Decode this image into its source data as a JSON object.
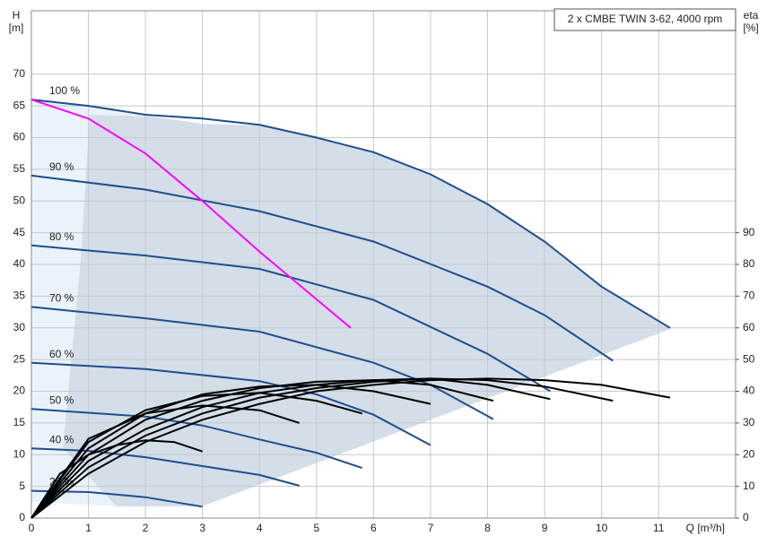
{
  "chart_data": {
    "type": "line",
    "title": "2 x CMBE TWIN 3-62, 4000 rpm",
    "y_label": "H",
    "y_unit": "[m]",
    "y2_label": "eta",
    "y2_unit": "[%]",
    "x_label": "Q [m³/h]",
    "xlim": [
      0,
      12.35
    ],
    "xticks": [
      0,
      1,
      2,
      3,
      4,
      5,
      6,
      7,
      8,
      9,
      10,
      11
    ],
    "ylim": [
      0,
      80
    ],
    "yticks": [
      0,
      5,
      10,
      15,
      20,
      25,
      30,
      35,
      40,
      45,
      50,
      55,
      60,
      65,
      70
    ],
    "y2lim": [
      0,
      160
    ],
    "y2ticks": [
      0,
      10,
      20,
      30,
      40,
      50,
      60,
      70,
      80,
      90
    ],
    "grid": true,
    "series": [
      {
        "name": "100 %",
        "color": "#1f4e8c",
        "x": [
          0,
          1,
          2,
          3,
          4,
          5,
          6,
          7,
          8,
          9,
          10,
          11.2
        ],
        "values": [
          66,
          65,
          63.6,
          63,
          62,
          60,
          57.7,
          54.2,
          49.5,
          43.6,
          36.5,
          30
        ]
      },
      {
        "name": "90 %",
        "color": "#1f4e8c",
        "x": [
          0,
          2,
          4,
          6,
          8,
          9,
          10.2
        ],
        "values": [
          54,
          51.8,
          48.4,
          43.6,
          36.5,
          32,
          24.8
        ]
      },
      {
        "name": "80 %",
        "color": "#1f4e8c",
        "x": [
          0,
          2,
          4,
          6,
          8,
          9.1
        ],
        "values": [
          43,
          41.4,
          39.3,
          34.4,
          25.9,
          20
        ]
      },
      {
        "name": "70 %",
        "color": "#1f4e8c",
        "x": [
          0,
          2,
          4,
          6,
          7,
          8.1
        ],
        "values": [
          33.3,
          31.5,
          29.4,
          24.5,
          21,
          15.6
        ]
      },
      {
        "name": "60 %",
        "color": "#1f4e8c",
        "x": [
          0,
          2,
          4,
          5,
          6,
          7
        ],
        "values": [
          24.5,
          23.5,
          21.6,
          19.5,
          16.3,
          11.5
        ]
      },
      {
        "name": "50 %",
        "color": "#1f4e8c",
        "x": [
          0,
          2,
          3,
          4,
          5,
          5.8
        ],
        "values": [
          17.2,
          16,
          14.6,
          12.4,
          10.3,
          7.9
        ]
      },
      {
        "name": "40 %",
        "color": "#1f4e8c",
        "x": [
          0,
          1,
          2,
          3,
          4,
          4.7
        ],
        "values": [
          11,
          10.6,
          9.6,
          8.2,
          6.8,
          5.1
        ]
      },
      {
        "name": "25 %",
        "color": "#1f4e8c",
        "x": [
          0,
          1,
          2,
          3
        ],
        "values": [
          4.3,
          4.1,
          3.3,
          1.8
        ]
      },
      {
        "color": "#ff00ff",
        "x": [
          0,
          1,
          2,
          3,
          4,
          5,
          5.6
        ],
        "values": [
          66,
          63,
          57.5,
          50,
          42,
          34.5,
          30
        ]
      },
      {
        "color": "#000000",
        "axis": "y2",
        "x": [
          0,
          1,
          2,
          3,
          4,
          5,
          6,
          7,
          8,
          9,
          10,
          11.2
        ],
        "values": [
          0,
          14,
          24,
          31,
          36,
          40,
          42,
          43.5,
          44,
          43.5,
          42,
          38
        ]
      },
      {
        "color": "#000000",
        "axis": "y2",
        "x": [
          0,
          1,
          2,
          3,
          4,
          5,
          6,
          7,
          8,
          9,
          10.2
        ],
        "values": [
          0,
          16,
          26,
          33,
          38,
          41,
          43,
          44,
          43.5,
          41.5,
          37
        ]
      },
      {
        "color": "#000000",
        "axis": "y2",
        "x": [
          0,
          1,
          2,
          3,
          4,
          5,
          6,
          7,
          8,
          9.1
        ],
        "values": [
          0,
          18,
          28,
          35,
          39.5,
          42,
          43.5,
          44,
          42,
          37.5
        ]
      },
      {
        "color": "#000000",
        "axis": "y2",
        "x": [
          0,
          1,
          2,
          3,
          4,
          5,
          6,
          7,
          8.1
        ],
        "values": [
          0,
          20,
          31,
          37,
          41,
          43,
          43.5,
          42,
          37
        ]
      },
      {
        "color": "#000000",
        "axis": "y2",
        "x": [
          0,
          1,
          2,
          3,
          4,
          5,
          6,
          7
        ],
        "values": [
          0,
          22,
          33,
          39,
          41.5,
          42,
          40,
          36
        ]
      },
      {
        "color": "#000000",
        "axis": "y2",
        "x": [
          0,
          1,
          2,
          3,
          4,
          5,
          5.8
        ],
        "values": [
          0,
          24,
          34,
          38.5,
          39.5,
          37,
          33
        ]
      },
      {
        "color": "#000000",
        "axis": "y2",
        "x": [
          0,
          1,
          2,
          3,
          4,
          4.7
        ],
        "values": [
          0,
          25,
          33,
          35.5,
          34,
          30
        ]
      },
      {
        "color": "#000000",
        "axis": "y2",
        "x": [
          0,
          0.5,
          1,
          1.5,
          2,
          2.5,
          3
        ],
        "values": [
          0,
          14,
          20,
          23,
          24.5,
          24,
          21
        ]
      }
    ]
  }
}
